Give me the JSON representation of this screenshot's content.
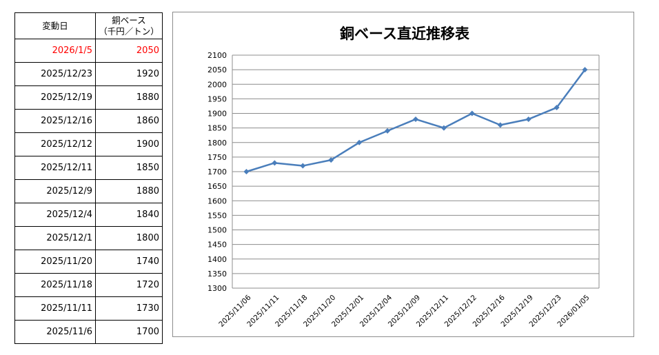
{
  "table": {
    "header": {
      "date": "変動日",
      "price_line1": "銅ベース",
      "price_line2": "（千円／トン）"
    },
    "rows": [
      {
        "date": "2026/1/5",
        "price": "2050",
        "highlight": true
      },
      {
        "date": "2025/12/23",
        "price": "1920"
      },
      {
        "date": "2025/12/19",
        "price": "1880"
      },
      {
        "date": "2025/12/16",
        "price": "1860"
      },
      {
        "date": "2025/12/12",
        "price": "1900"
      },
      {
        "date": "2025/12/11",
        "price": "1850"
      },
      {
        "date": "2025/12/9",
        "price": "1880"
      },
      {
        "date": "2025/12/4",
        "price": "1840"
      },
      {
        "date": "2025/12/1",
        "price": "1800"
      },
      {
        "date": "2025/11/20",
        "price": "1740"
      },
      {
        "date": "2025/11/18",
        "price": "1720"
      },
      {
        "date": "2025/11/11",
        "price": "1730"
      },
      {
        "date": "2025/11/6",
        "price": "1700"
      }
    ],
    "highlight_color": "#ff0000"
  },
  "chart_data": {
    "type": "line",
    "title": "銅ベース直近推移表",
    "xlabel": "",
    "ylabel": "",
    "categories": [
      "2025/11/06",
      "2025/11/11",
      "2025/11/18",
      "2025/11/20",
      "2025/12/01",
      "2025/12/04",
      "2025/12/09",
      "2025/12/11",
      "2025/12/12",
      "2025/12/16",
      "2025/12/19",
      "2025/12/23",
      "2026/01/05"
    ],
    "series": [
      {
        "values": [
          1700,
          1730,
          1720,
          1740,
          1800,
          1840,
          1880,
          1850,
          1900,
          1860,
          1880,
          1920,
          2050
        ]
      }
    ],
    "ylim": [
      1300,
      2100
    ],
    "yticks": [
      1300,
      1350,
      1400,
      1450,
      1500,
      1550,
      1600,
      1650,
      1700,
      1750,
      1800,
      1850,
      1900,
      1950,
      2000,
      2050,
      2100
    ],
    "grid": true,
    "legend": "none",
    "line_color": "#4a7ebb",
    "marker": "diamond"
  }
}
